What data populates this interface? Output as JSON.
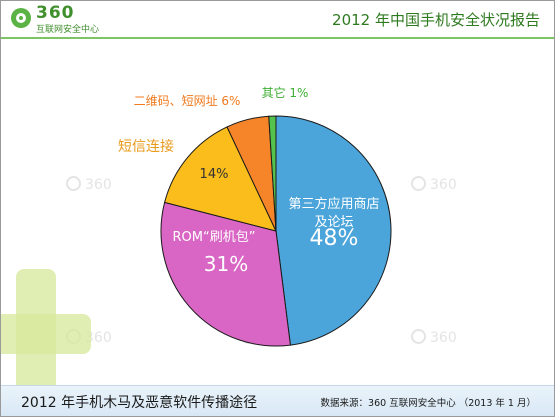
{
  "logo": {
    "number": "360",
    "subtitle": "互联网安全中心"
  },
  "header": {
    "title": "2012 年中国手机安全状况报告"
  },
  "footer": {
    "title": "2012 年手机木马及恶意软件传播途径",
    "source": "数据来源：360 互联网安全中心 （2013 年 1 月）"
  },
  "watermark": "360",
  "colors": {
    "accent_green": "#7cc464",
    "brand_green": "#3f8f2c"
  },
  "chart_data": {
    "type": "pie",
    "title": "",
    "slices": [
      {
        "label": "第三方应用商店\n及论坛",
        "value": 48,
        "value_text": "48%",
        "color": "#4ba5da",
        "label_color": "#ffffff"
      },
      {
        "label": "ROM“刷机包”",
        "value": 31,
        "value_text": "31%",
        "color": "#d966c4",
        "label_color": "#ffffff"
      },
      {
        "label": "短信连接",
        "value": 14,
        "value_text": "14%",
        "color": "#fbbd1c",
        "label_color": "#e89a1a"
      },
      {
        "label": "二维码、短网址 6%",
        "value": 6,
        "value_text": "",
        "color": "#f6852a",
        "label_color": "#f07a1e"
      },
      {
        "label": "其它 1%",
        "value": 1,
        "value_text": "",
        "color": "#54c34e",
        "label_color": "#3fae35"
      }
    ]
  }
}
